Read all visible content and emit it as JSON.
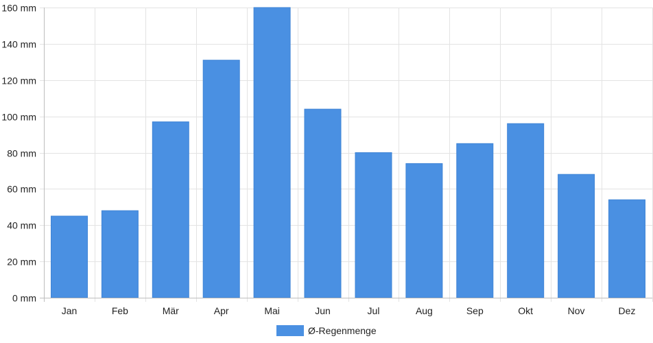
{
  "chart_data": {
    "type": "bar",
    "categories": [
      "Jan",
      "Feb",
      "Mär",
      "Apr",
      "Mai",
      "Jun",
      "Jul",
      "Aug",
      "Sep",
      "Okt",
      "Nov",
      "Dez"
    ],
    "series": [
      {
        "name": "Ø-Regenmenge",
        "color": "#4a90e2",
        "values": [
          45,
          48,
          97,
          131,
          160,
          104,
          80,
          74,
          85,
          96,
          68,
          54
        ]
      }
    ],
    "ylim": [
      0,
      160
    ],
    "yticks": [
      0,
      20,
      40,
      60,
      80,
      100,
      120,
      140,
      160
    ],
    "ytick_suffix": " mm",
    "grid": true,
    "legend_position": "bottom"
  }
}
